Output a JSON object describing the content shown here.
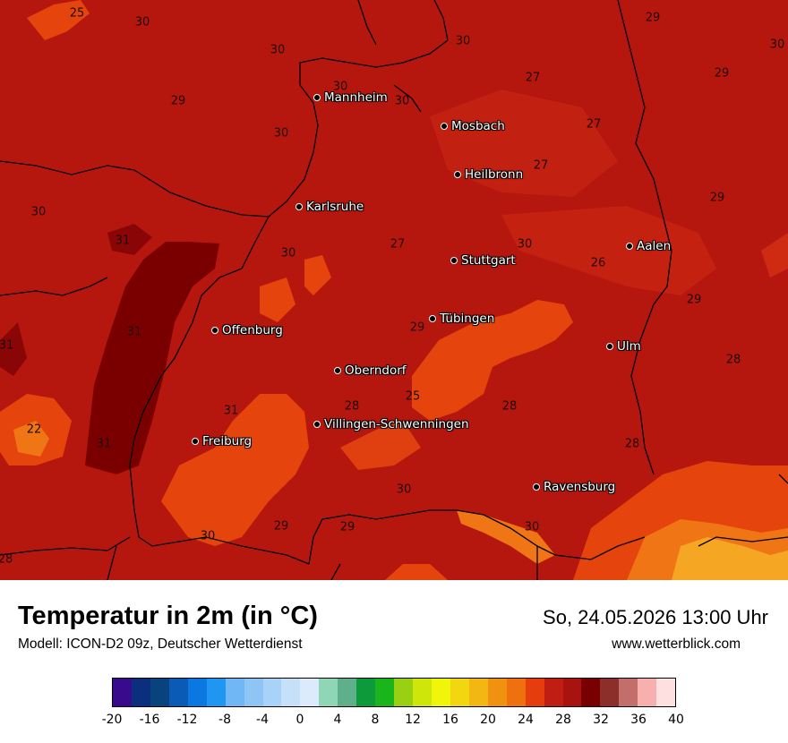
{
  "map": {
    "fill_colors": {
      "base": "#b5170f",
      "dark": "#7a0000",
      "mid": "#cf2a12",
      "orange": "#e5450d",
      "orange_light": "#f07514",
      "yellow": "#f5a623"
    },
    "cities": [
      {
        "name": "Mannheim"
      },
      {
        "name": "Mosbach"
      },
      {
        "name": "Heilbronn"
      },
      {
        "name": "Karlsruhe"
      },
      {
        "name": "Stuttgart"
      },
      {
        "name": "Aalen"
      },
      {
        "name": "Tübingen"
      },
      {
        "name": "Offenburg"
      },
      {
        "name": "Ulm"
      },
      {
        "name": "Oberndorf"
      },
      {
        "name": "Villingen-Schwenningen"
      },
      {
        "name": "Freiburg"
      },
      {
        "name": "Ravensburg"
      }
    ],
    "values": [
      "25",
      "30",
      "30",
      "29",
      "30",
      "29",
      "30",
      "27",
      "27",
      "29",
      "30",
      "30",
      "30",
      "29",
      "27",
      "31",
      "30",
      "27",
      "30",
      "26",
      "29",
      "31",
      "29",
      "31",
      "28",
      "22",
      "31",
      "28",
      "25",
      "28",
      "31",
      "28",
      "30",
      "30",
      "29",
      "29",
      "30",
      "28",
      "30"
    ]
  },
  "header": {
    "title": "Temperatur in 2m (in °C)",
    "model": "Modell: ICON-D2 09z, Deutscher Wetterdienst",
    "datetime": "So, 24.05.2026 13:00 Uhr",
    "site": "www.wetterblick.com"
  },
  "legend": {
    "colors": [
      "#3a0a8c",
      "#0a2f7d",
      "#08437e",
      "#0a5bb5",
      "#0a78e0",
      "#1e96f2",
      "#6fb8f5",
      "#8ec5f5",
      "#a8d2f7",
      "#c7e0f9",
      "#dcebfb",
      "#8fd6b7",
      "#5fb08a",
      "#0c9a3a",
      "#19b51a",
      "#9ad014",
      "#cfe60a",
      "#f0f50a",
      "#f2d60f",
      "#f2b710",
      "#f0920f",
      "#ef700f",
      "#e53d0d",
      "#c01e12",
      "#a8130f",
      "#780000",
      "#8c2e2a",
      "#c26f6c",
      "#f7b0ae",
      "#fde0df"
    ],
    "ticks": [
      "-20",
      "-16",
      "-12",
      "-8",
      "-4",
      "0",
      "4",
      "8",
      "12",
      "16",
      "20",
      "24",
      "28",
      "32",
      "36",
      "40"
    ]
  }
}
